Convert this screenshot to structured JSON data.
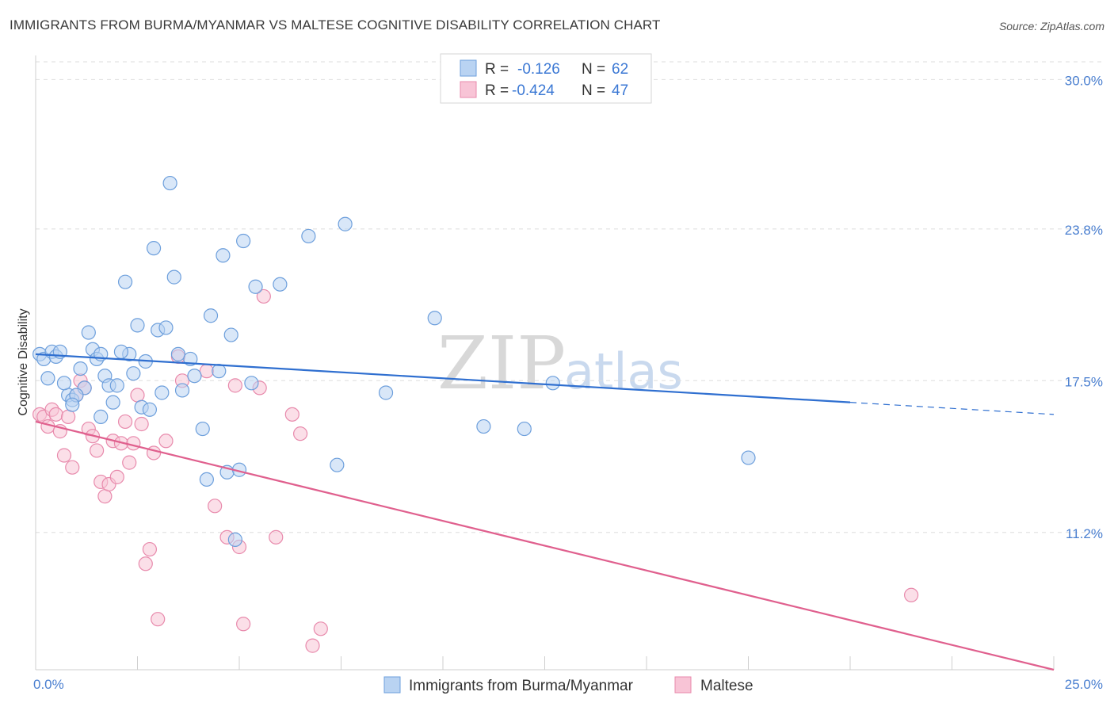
{
  "title": "IMMIGRANTS FROM BURMA/MYANMAR VS MALTESE COGNITIVE DISABILITY CORRELATION CHART",
  "source": "Source: ZipAtlas.com",
  "watermark": {
    "zip": "ZIP",
    "atlas": "atlas"
  },
  "colors": {
    "blue_fill": "#b9d3f2",
    "blue_stroke": "#6d9fdc",
    "blue_line": "#2f6fd0",
    "pink_fill": "#f8c4d6",
    "pink_stroke": "#e88aac",
    "pink_line": "#e0608e",
    "grid": "#dedede",
    "axis_text": "#4a7fd0"
  },
  "legend": {
    "blue": {
      "r_label": "R =",
      "r_value": "-0.126",
      "n_label": "N =",
      "n_value": "62"
    },
    "pink": {
      "r_label": "R =",
      "r_value": "-0.424",
      "n_label": "N =",
      "n_value": "47"
    }
  },
  "chart_data": {
    "type": "scatter",
    "title": "IMMIGRANTS FROM BURMA/MYANMAR VS MALTESE COGNITIVE DISABILITY CORRELATION CHART",
    "xlabel": "",
    "ylabel": "Cognitive Disability",
    "xlim": [
      0,
      25
    ],
    "ylim": [
      5.5,
      31.0
    ],
    "x_tick_labels": [
      "0.0%",
      "25.0%"
    ],
    "y_ticks": [
      11.2,
      17.5,
      23.8,
      30.0
    ],
    "y_tick_labels": [
      "11.2%",
      "17.5%",
      "23.8%",
      "30.0%"
    ],
    "grid": true,
    "series": [
      {
        "name": "Immigrants from Burma/Myanmar",
        "color": "blue",
        "trend": {
          "x0": 0.0,
          "y0": 18.6,
          "x1": 20.0,
          "y1": 16.6,
          "dash_to_x": 25.0,
          "dash_to_y": 16.1
        },
        "points": [
          [
            0.1,
            18.6
          ],
          [
            0.2,
            18.4
          ],
          [
            0.3,
            17.6
          ],
          [
            0.4,
            18.7
          ],
          [
            0.5,
            18.5
          ],
          [
            0.6,
            18.7
          ],
          [
            0.8,
            16.9
          ],
          [
            0.9,
            16.7
          ],
          [
            1.1,
            18.0
          ],
          [
            1.2,
            17.2
          ],
          [
            1.3,
            19.5
          ],
          [
            1.4,
            18.8
          ],
          [
            1.5,
            18.4
          ],
          [
            1.6,
            18.6
          ],
          [
            1.7,
            17.7
          ],
          [
            1.8,
            17.3
          ],
          [
            1.9,
            16.6
          ],
          [
            2.0,
            17.3
          ],
          [
            2.2,
            21.6
          ],
          [
            2.3,
            18.6
          ],
          [
            2.4,
            17.8
          ],
          [
            2.5,
            19.8
          ],
          [
            2.6,
            16.4
          ],
          [
            2.7,
            18.3
          ],
          [
            2.8,
            16.3
          ],
          [
            2.9,
            23.0
          ],
          [
            3.0,
            19.6
          ],
          [
            3.1,
            17.0
          ],
          [
            3.2,
            19.7
          ],
          [
            3.4,
            21.8
          ],
          [
            3.5,
            18.6
          ],
          [
            3.6,
            17.1
          ],
          [
            3.8,
            18.4
          ],
          [
            3.9,
            17.7
          ],
          [
            4.1,
            15.5
          ],
          [
            4.2,
            13.4
          ],
          [
            4.3,
            20.2
          ],
          [
            4.5,
            17.9
          ],
          [
            4.6,
            22.7
          ],
          [
            4.7,
            13.7
          ],
          [
            4.8,
            19.4
          ],
          [
            4.9,
            10.9
          ],
          [
            5.0,
            13.8
          ],
          [
            5.1,
            23.3
          ],
          [
            5.3,
            17.4
          ],
          [
            5.4,
            21.4
          ],
          [
            6.0,
            21.5
          ],
          [
            6.7,
            23.5
          ],
          [
            7.4,
            14.0
          ],
          [
            7.6,
            24.0
          ],
          [
            8.6,
            17.0
          ],
          [
            9.8,
            20.1
          ],
          [
            11.0,
            15.6
          ],
          [
            12.0,
            15.5
          ],
          [
            12.7,
            17.4
          ],
          [
            17.5,
            14.3
          ],
          [
            3.3,
            25.7
          ],
          [
            1.0,
            16.9
          ],
          [
            0.7,
            17.4
          ],
          [
            2.1,
            18.7
          ],
          [
            0.9,
            16.5
          ],
          [
            1.6,
            16.0
          ]
        ]
      },
      {
        "name": "Maltese",
        "color": "pink",
        "trend": {
          "x0": 0.0,
          "y0": 15.8,
          "x1": 25.0,
          "y1": 5.5
        },
        "points": [
          [
            0.1,
            16.1
          ],
          [
            0.2,
            16.0
          ],
          [
            0.3,
            15.6
          ],
          [
            0.4,
            16.3
          ],
          [
            0.5,
            16.1
          ],
          [
            0.6,
            15.4
          ],
          [
            0.7,
            14.4
          ],
          [
            0.8,
            16.0
          ],
          [
            0.9,
            13.9
          ],
          [
            1.0,
            16.9
          ],
          [
            1.1,
            17.5
          ],
          [
            1.2,
            17.2
          ],
          [
            1.3,
            15.5
          ],
          [
            1.4,
            15.2
          ],
          [
            1.5,
            14.6
          ],
          [
            1.6,
            13.3
          ],
          [
            1.7,
            12.7
          ],
          [
            1.8,
            13.2
          ],
          [
            1.9,
            15.0
          ],
          [
            2.0,
            13.5
          ],
          [
            2.1,
            14.9
          ],
          [
            2.2,
            15.8
          ],
          [
            2.3,
            14.1
          ],
          [
            2.4,
            14.9
          ],
          [
            2.5,
            16.9
          ],
          [
            2.6,
            15.7
          ],
          [
            2.7,
            9.9
          ],
          [
            2.8,
            10.5
          ],
          [
            2.9,
            14.5
          ],
          [
            3.0,
            7.6
          ],
          [
            3.2,
            15.0
          ],
          [
            3.5,
            18.5
          ],
          [
            3.6,
            17.5
          ],
          [
            4.2,
            17.9
          ],
          [
            4.4,
            12.3
          ],
          [
            4.7,
            11.0
          ],
          [
            4.9,
            17.3
          ],
          [
            5.0,
            10.6
          ],
          [
            5.1,
            7.4
          ],
          [
            5.5,
            17.2
          ],
          [
            5.6,
            21.0
          ],
          [
            5.9,
            11.0
          ],
          [
            6.3,
            16.1
          ],
          [
            6.5,
            15.3
          ],
          [
            7.0,
            7.2
          ],
          [
            21.5,
            8.6
          ],
          [
            6.8,
            6.5
          ]
        ]
      }
    ]
  },
  "bottom_legend": {
    "blue_label": "Immigrants from Burma/Myanmar",
    "pink_label": "Maltese"
  }
}
